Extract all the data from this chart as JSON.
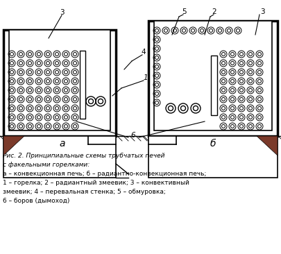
{
  "bg_color": "#ffffff",
  "line_color": "#000000",
  "title_lines": [
    "Рис. 2. Принципиальные схемы трубчатых печей",
    "с факельными горелками:",
    "а – конвекционная печь; б – радиантно-конвекционная печь;",
    "1 – горелка; 2 – радиантный змеевик; 3 – конвективный",
    "змеевик; 4 – перевальная стенка; 5 – обмуровка;",
    "6 – боров (дымоход)"
  ],
  "label_a": "а",
  "label_b": "б",
  "label_1": "1",
  "label_2": "2",
  "label_3": "3",
  "label_4": "4",
  "label_5": "5",
  "label_6": "6"
}
